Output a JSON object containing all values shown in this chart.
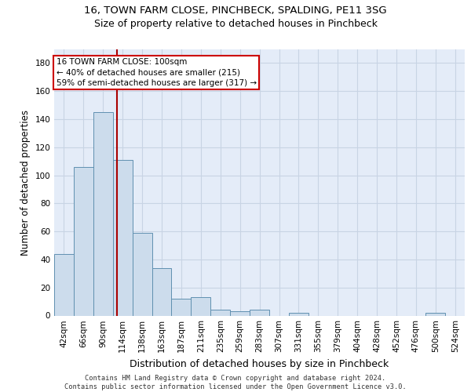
{
  "title_line1": "16, TOWN FARM CLOSE, PINCHBECK, SPALDING, PE11 3SG",
  "title_line2": "Size of property relative to detached houses in Pinchbeck",
  "xlabel": "Distribution of detached houses by size in Pinchbeck",
  "ylabel": "Number of detached properties",
  "categories": [
    "42sqm",
    "66sqm",
    "90sqm",
    "114sqm",
    "138sqm",
    "163sqm",
    "187sqm",
    "211sqm",
    "235sqm",
    "259sqm",
    "283sqm",
    "307sqm",
    "331sqm",
    "355sqm",
    "379sqm",
    "404sqm",
    "428sqm",
    "452sqm",
    "476sqm",
    "500sqm",
    "524sqm"
  ],
  "values": [
    44,
    106,
    145,
    111,
    59,
    34,
    12,
    13,
    4,
    3,
    4,
    0,
    2,
    0,
    0,
    0,
    0,
    0,
    0,
    2,
    0
  ],
  "bar_color": "#ccdcec",
  "bar_edge_color": "#6090b0",
  "grid_color": "#c8d4e4",
  "background_color": "#e4ecf8",
  "vline_color": "#aa0000",
  "vline_x": 2.7,
  "annotation_text": "16 TOWN FARM CLOSE: 100sqm\n← 40% of detached houses are smaller (215)\n59% of semi-detached houses are larger (317) →",
  "annotation_box_color": "#ffffff",
  "annotation_box_edge": "#cc0000",
  "ylim": [
    0,
    190
  ],
  "yticks": [
    0,
    20,
    40,
    60,
    80,
    100,
    120,
    140,
    160,
    180
  ],
  "title1_fontsize": 9.5,
  "title2_fontsize": 9,
  "ylabel_fontsize": 8.5,
  "xlabel_fontsize": 9,
  "tick_fontsize": 7.5,
  "footer_line1": "Contains HM Land Registry data © Crown copyright and database right 2024.",
  "footer_line2": "Contains public sector information licensed under the Open Government Licence v3.0."
}
